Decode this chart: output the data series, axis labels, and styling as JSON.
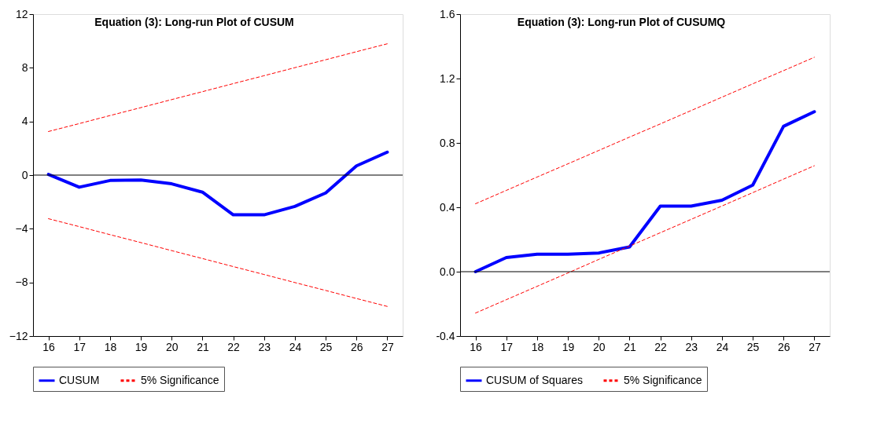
{
  "chart_data": [
    {
      "type": "line",
      "title": "Equation (3): Long-run Plot of CUSUM",
      "categories": [
        "16",
        "17",
        "18",
        "19",
        "20",
        "21",
        "22",
        "23",
        "24",
        "25",
        "26",
        "27"
      ],
      "series": [
        {
          "name": "CUSUM",
          "color": "#0000ff",
          "line_style": "solid",
          "values": [
            0.05,
            -0.9,
            -0.4,
            -0.37,
            -0.65,
            -1.27,
            -2.96,
            -2.96,
            -2.33,
            -1.33,
            0.69,
            1.71
          ]
        },
        {
          "name": "5% Significance",
          "color": "#ff0000",
          "line_style": "dashed",
          "values": [
            3.25,
            3.84,
            4.44,
            5.03,
            5.63,
            6.22,
            6.82,
            7.41,
            8.01,
            8.6,
            9.2,
            9.79
          ]
        },
        {
          "color": "#ff0000",
          "line_style": "dashed",
          "values": [
            -3.25,
            -3.84,
            -4.44,
            -5.03,
            -5.63,
            -6.22,
            -6.82,
            -7.41,
            -8.01,
            -8.6,
            -9.2,
            -9.79
          ]
        }
      ],
      "ylim": [
        -12,
        12
      ],
      "yticks": [
        -12,
        -8,
        -4,
        0,
        4,
        8,
        12
      ],
      "grid": false,
      "legend": "bottom",
      "ref_lines": [
        {
          "axis": "y",
          "value": 0,
          "color": "#000000"
        }
      ]
    },
    {
      "type": "line",
      "title": "Equation (3): Long-run Plot of CUSUMQ",
      "categories": [
        "16",
        "17",
        "18",
        "19",
        "20",
        "21",
        "22",
        "23",
        "24",
        "25",
        "26",
        "27"
      ],
      "series": [
        {
          "name": "CUSUM of Squares",
          "color": "#0000ff",
          "line_style": "solid",
          "values": [
            0,
            0.088,
            0.108,
            0.108,
            0.116,
            0.154,
            0.407,
            0.407,
            0.444,
            0.538,
            0.903,
            0.994
          ]
        },
        {
          "name": "5% Significance",
          "color": "#ff0000",
          "line_style": "dashed",
          "values": [
            0.422,
            0.505,
            0.588,
            0.67,
            0.753,
            0.836,
            0.918,
            1.001,
            1.084,
            1.167,
            1.249,
            1.332
          ]
        },
        {
          "color": "#ff0000",
          "line_style": "dashed",
          "values": [
            -0.257,
            -0.174,
            -0.091,
            -0.008,
            0.076,
            0.159,
            0.242,
            0.325,
            0.408,
            0.491,
            0.575,
            0.658
          ]
        }
      ],
      "ylim": [
        -0.4,
        1.6
      ],
      "yticks": [
        {
          "value": -0.4,
          "label": "-0.4"
        },
        {
          "value": 0,
          "label": "0.0"
        },
        {
          "value": 0.4,
          "label": "0.4"
        },
        {
          "value": 0.8,
          "label": "0.8"
        },
        {
          "value": 1.2,
          "label": "1.2"
        },
        {
          "value": 1.6,
          "label": "1.6"
        }
      ],
      "grid": false,
      "legend": "bottom",
      "ref_lines": [
        {
          "axis": "y",
          "value": 0,
          "color": "#000000"
        }
      ]
    }
  ]
}
